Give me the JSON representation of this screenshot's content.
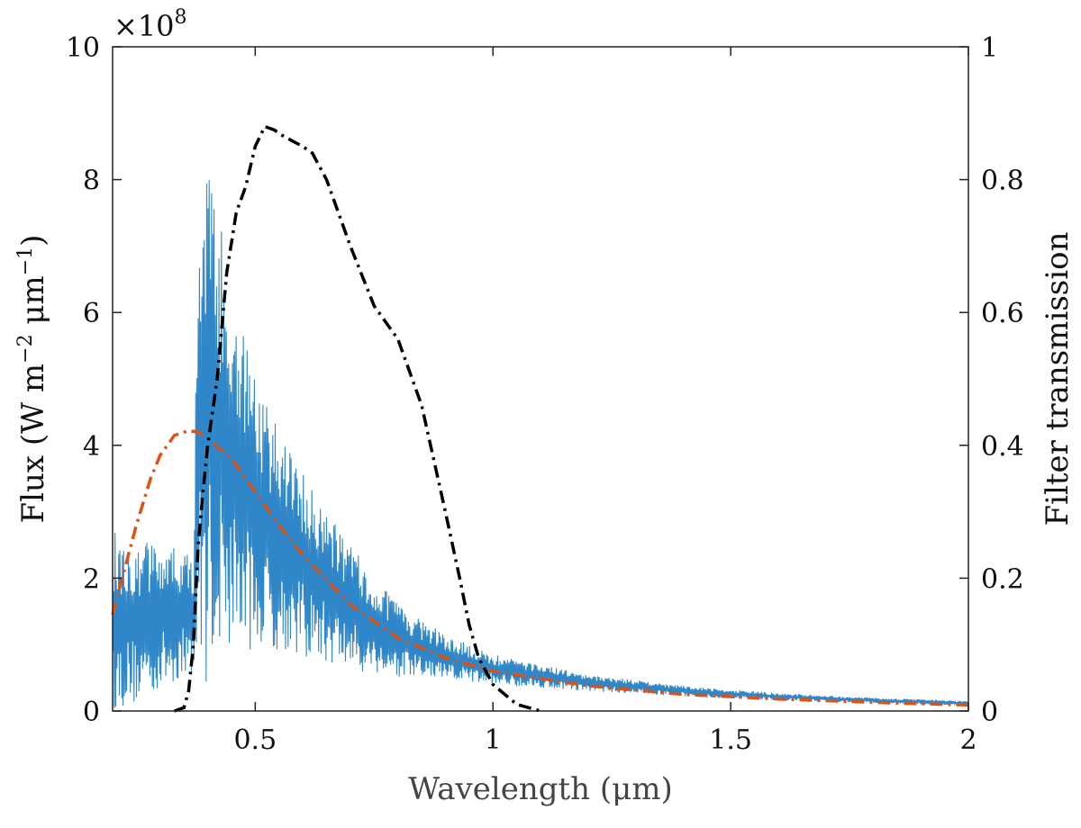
{
  "chart_data": {
    "type": "line",
    "title": "",
    "xlabel": "Wavelength (μm)",
    "ylabel_left": "Flux (W m",
    "ylabel_left_exp1": "−2",
    "ylabel_left_mid": " μm",
    "ylabel_left_exp2": "−1",
    "ylabel_left_end": ")",
    "ylabel_right": "Filter transmission",
    "y_multiplier": "×10",
    "y_multiplier_exp": "8",
    "xlim": [
      0.2,
      2.0
    ],
    "ylim_left": [
      0,
      10
    ],
    "ylim_right": [
      0,
      1
    ],
    "x_ticks": [
      0.5,
      1,
      1.5,
      2
    ],
    "x_tick_labels": [
      "0.5",
      "1",
      "1.5",
      "2"
    ],
    "y_left_ticks": [
      0,
      2,
      4,
      6,
      8,
      10
    ],
    "y_left_tick_labels": [
      "0",
      "2",
      "4",
      "6",
      "8",
      "10"
    ],
    "y_right_ticks": [
      0,
      0.2,
      0.4,
      0.6,
      0.8,
      1
    ],
    "y_right_tick_labels": [
      "0",
      "0.2",
      "0.4",
      "0.6",
      "0.8",
      "1"
    ],
    "grid": false,
    "series": [
      {
        "axis": "left",
        "style": "solid",
        "color": "#2f86c8",
        "envelope_x": [
          0.2,
          0.25,
          0.3,
          0.35,
          0.37,
          0.38,
          0.39,
          0.4,
          0.42,
          0.45,
          0.5,
          0.55,
          0.6,
          0.7,
          0.8,
          0.9,
          1.0,
          1.2,
          1.4,
          1.6,
          1.8,
          2.0
        ],
        "envelope_upper": [
          2.7,
          2.6,
          2.55,
          2.4,
          2.3,
          8.5,
          8.4,
          8.3,
          7.6,
          6.5,
          5.0,
          4.2,
          3.6,
          2.5,
          1.6,
          1.15,
          0.85,
          0.55,
          0.38,
          0.27,
          0.2,
          0.15
        ],
        "envelope_lower": [
          0.0,
          0.1,
          0.3,
          0.5,
          0.6,
          0.2,
          0.3,
          0.5,
          0.8,
          1.0,
          0.9,
          0.9,
          0.8,
          0.6,
          0.5,
          0.45,
          0.4,
          0.3,
          0.22,
          0.16,
          0.12,
          0.08
        ]
      },
      {
        "axis": "left",
        "style": "dash-dot",
        "color": "#d95319",
        "x": [
          0.2,
          0.22,
          0.25,
          0.28,
          0.3,
          0.33,
          0.36,
          0.38,
          0.4,
          0.45,
          0.5,
          0.55,
          0.6,
          0.7,
          0.8,
          0.9,
          1.0,
          1.2,
          1.4,
          1.6,
          1.8,
          2.0
        ],
        "y": [
          1.45,
          2.0,
          2.8,
          3.5,
          3.85,
          4.15,
          4.22,
          4.2,
          4.1,
          3.8,
          3.3,
          2.8,
          2.35,
          1.6,
          1.1,
          0.8,
          0.6,
          0.38,
          0.25,
          0.18,
          0.13,
          0.09
        ]
      },
      {
        "axis": "right",
        "style": "dash-dot",
        "color": "#000000",
        "x": [
          0.33,
          0.35,
          0.36,
          0.37,
          0.38,
          0.39,
          0.4,
          0.42,
          0.44,
          0.46,
          0.48,
          0.5,
          0.52,
          0.54,
          0.56,
          0.6,
          0.62,
          0.65,
          0.7,
          0.75,
          0.78,
          0.8,
          0.85,
          0.9,
          0.93,
          0.95,
          0.97,
          1.0,
          1.05,
          1.1
        ],
        "y": [
          0.0,
          0.005,
          0.03,
          0.1,
          0.25,
          0.33,
          0.4,
          0.5,
          0.66,
          0.75,
          0.79,
          0.85,
          0.88,
          0.875,
          0.865,
          0.85,
          0.84,
          0.8,
          0.7,
          0.61,
          0.58,
          0.56,
          0.46,
          0.3,
          0.2,
          0.13,
          0.08,
          0.04,
          0.01,
          0.0
        ]
      }
    ]
  }
}
